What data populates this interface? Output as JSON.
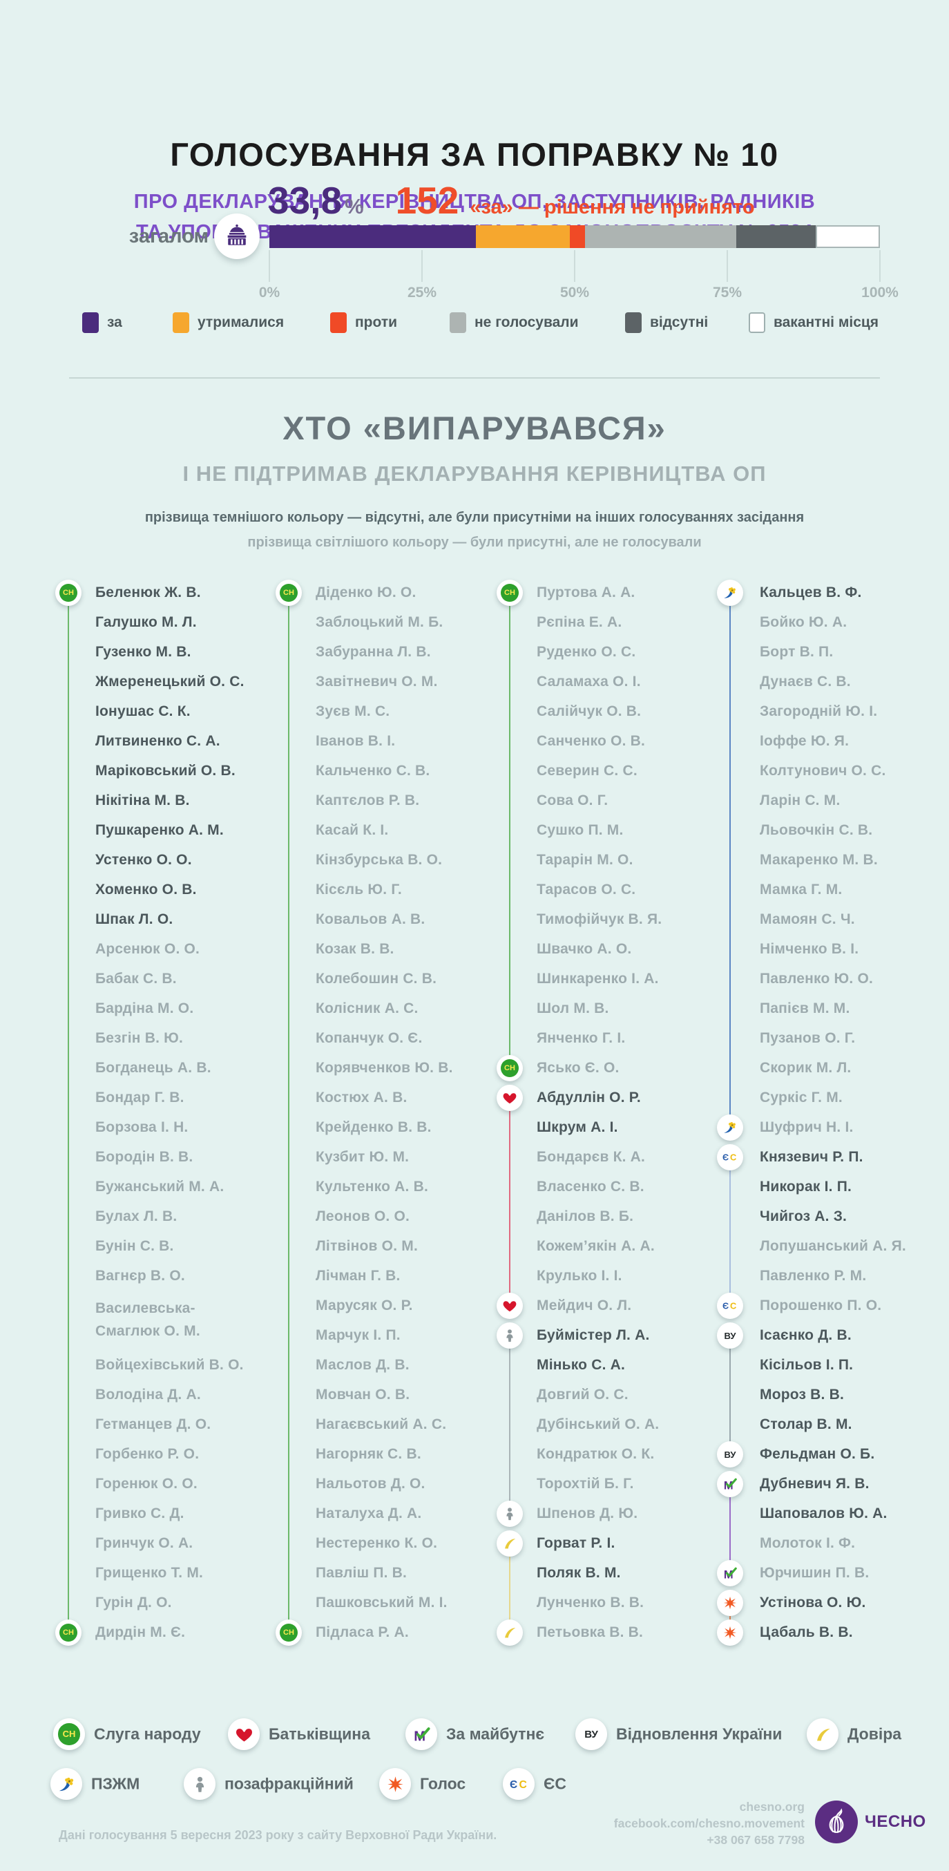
{
  "header": {
    "title": "ГОЛОСУВАННЯ ЗА ПОПРАВКУ № 10",
    "subtitle_line1": "ПРО ДЕКЛАРУВАННЯ КЕРІВНИЦТВА ОП, ЗАСТУПНИКІВ, РАДНИКІВ",
    "subtitle_line2": "ТА УПОВНОВАЖЕНИХ ПРЕЗИДЕНТА ДО ЗАКОНОПРОЄКТУ № 9534"
  },
  "chart_data": {
    "type": "bar",
    "title": "Голосування за поправку № 10",
    "row_label": "загалом",
    "stat_percent": "33,8",
    "stat_percent_sign": "%",
    "stat_count": "152",
    "stat_note": "«за» — рішення не прийнято",
    "xlim": [
      0,
      100
    ],
    "segments": [
      {
        "label": "за",
        "percent": 33.8,
        "color": "#4b2c7d"
      },
      {
        "label": "утрималися",
        "percent": 15.4,
        "color": "#f6a72e"
      },
      {
        "label": "проти",
        "percent": 2.5,
        "color": "#f04a26"
      },
      {
        "label": "не голосували",
        "percent": 24.8,
        "color": "#adb4b2"
      },
      {
        "label": "відсутні",
        "percent": 13.0,
        "color": "#5c6366"
      },
      {
        "label": "вакантні місця",
        "percent": 10.5,
        "color": "#ffffff"
      }
    ],
    "ticks": [
      {
        "pct": 0,
        "label": "0%"
      },
      {
        "pct": 25,
        "label": "25%"
      },
      {
        "pct": 50,
        "label": "50%"
      },
      {
        "pct": 75,
        "label": "75%"
      },
      {
        "pct": 100,
        "label": "100%"
      }
    ],
    "legend_position": "bottom"
  },
  "section": {
    "title": "ХТО «ВИПАРУВАВСЯ»",
    "subtitle": "І НЕ ПІДТРИМАВ ДЕКЛАРУВАННЯ КЕРІВНИЦТВА ОП",
    "note_dark": "прізвища темнішого кольору — відсутні, але були присутніми на інших голосуваннях засідання",
    "note_light": "прізвища світлішого кольору — були присутні, але не голосували"
  },
  "lists": {
    "columns": [
      {
        "groups": [
          {
            "party": "sn",
            "start": 0,
            "end": 35,
            "line": "#6cb96a"
          }
        ],
        "members": [
          {
            "n": "Беленюк Ж. В.",
            "t": "d"
          },
          {
            "n": "Галушко М. Л.",
            "t": "d"
          },
          {
            "n": "Гузенко М. В.",
            "t": "d"
          },
          {
            "n": "Жмеренецький О. С.",
            "t": "d"
          },
          {
            "n": "Іонушас С. К.",
            "t": "d"
          },
          {
            "n": "Литвиненко С. А.",
            "t": "d"
          },
          {
            "n": "Маріковський О. В.",
            "t": "d"
          },
          {
            "n": "Нікітіна М. В.",
            "t": "d"
          },
          {
            "n": "Пушкаренко А. М.",
            "t": "d"
          },
          {
            "n": "Устенко О. О.",
            "t": "d"
          },
          {
            "n": "Хоменко О. В.",
            "t": "d"
          },
          {
            "n": "Шпак Л. О.",
            "t": "d"
          },
          {
            "n": "Арсенюк О. О.",
            "t": "l"
          },
          {
            "n": "Бабак С. В.",
            "t": "l"
          },
          {
            "n": "Бардіна М. О.",
            "t": "l"
          },
          {
            "n": "Безгін В. Ю.",
            "t": "l"
          },
          {
            "n": "Богданець А. В.",
            "t": "l"
          },
          {
            "n": "Бондар Г. В.",
            "t": "l"
          },
          {
            "n": "Борзова І. Н.",
            "t": "l"
          },
          {
            "n": "Бородін В. В.",
            "t": "l"
          },
          {
            "n": "Бужанський М. А.",
            "t": "l"
          },
          {
            "n": "Булах Л. В.",
            "t": "l"
          },
          {
            "n": "Бунін С. В.",
            "t": "l"
          },
          {
            "n": "Вагнєр В. О.",
            "t": "l"
          },
          {
            "n": "Василевська-Смаглюк О. М.",
            "t": "l",
            "lines": [
              "Василевська-",
              "Смаглюк О. М."
            ]
          },
          {
            "n": "Войцехівський В. О.",
            "t": "l"
          },
          {
            "n": "Володіна Д. А.",
            "t": "l"
          },
          {
            "n": "Гетманцев Д. О.",
            "t": "l"
          },
          {
            "n": "Горбенко Р. О.",
            "t": "l"
          },
          {
            "n": "Горенюк О. О.",
            "t": "l"
          },
          {
            "n": "Гривко С. Д.",
            "t": "l"
          },
          {
            "n": "Гринчук О. А.",
            "t": "l"
          },
          {
            "n": "Грищенко Т. М.",
            "t": "l"
          },
          {
            "n": "Гурін Д. О.",
            "t": "l"
          },
          {
            "n": "Дирдін М. Є.",
            "t": "l"
          }
        ]
      },
      {
        "groups": [
          {
            "party": "sn",
            "start": 0,
            "end": 35,
            "line": "#6cb96a"
          }
        ],
        "members": [
          {
            "n": "Діденко Ю. О.",
            "t": "l"
          },
          {
            "n": "Заблоцький М. Б.",
            "t": "l"
          },
          {
            "n": "Забуранна Л. В.",
            "t": "l"
          },
          {
            "n": "Завітневич О. М.",
            "t": "l"
          },
          {
            "n": "Зуєв М. С.",
            "t": "l"
          },
          {
            "n": "Іванов В. І.",
            "t": "l"
          },
          {
            "n": "Кальченко С. В.",
            "t": "l"
          },
          {
            "n": "Каптєлов Р. В.",
            "t": "l"
          },
          {
            "n": "Касай К. І.",
            "t": "l"
          },
          {
            "n": "Кінзбурська В. О.",
            "t": "l"
          },
          {
            "n": "Кісєль Ю. Г.",
            "t": "l"
          },
          {
            "n": "Ковальов А. В.",
            "t": "l"
          },
          {
            "n": "Козак В. В.",
            "t": "l"
          },
          {
            "n": "Колебошин С. В.",
            "t": "l"
          },
          {
            "n": "Колісник А. С.",
            "t": "l"
          },
          {
            "n": "Копанчук О. Є.",
            "t": "l"
          },
          {
            "n": "Корявченков Ю. В.",
            "t": "l"
          },
          {
            "n": "Костюх А. В.",
            "t": "l"
          },
          {
            "n": "Крейденко В. В.",
            "t": "l"
          },
          {
            "n": "Кузбит Ю. М.",
            "t": "l"
          },
          {
            "n": "Культенко А. В.",
            "t": "l"
          },
          {
            "n": "Леонов О. О.",
            "t": "l"
          },
          {
            "n": "Літвінов О. М.",
            "t": "l"
          },
          {
            "n": "Лічман Г. В.",
            "t": "l"
          },
          {
            "n": "Марусяк О. Р.",
            "t": "l"
          },
          {
            "n": "Марчук І. П.",
            "t": "l"
          },
          {
            "n": "Маслов Д. В.",
            "t": "l"
          },
          {
            "n": "Мовчан О. В.",
            "t": "l"
          },
          {
            "n": "Нагаєвський А. С.",
            "t": "l"
          },
          {
            "n": "Нагорняк С. В.",
            "t": "l"
          },
          {
            "n": "Нальотов Д. О.",
            "t": "l"
          },
          {
            "n": "Наталуха Д. А.",
            "t": "l"
          },
          {
            "n": "Нестеренко К. О.",
            "t": "l"
          },
          {
            "n": "Павліш П. В.",
            "t": "l"
          },
          {
            "n": "Пашковський М. І.",
            "t": "l"
          },
          {
            "n": "Підласа Р. А.",
            "t": "l"
          }
        ]
      },
      {
        "groups": [
          {
            "party": "sn",
            "start": 0,
            "end": 16,
            "line": "#6cb96a"
          },
          {
            "party": "batkivshchyna",
            "start": 17,
            "end": 24,
            "line": "#e06a80"
          },
          {
            "party": "nonfaction",
            "start": 25,
            "end": 31,
            "line": "#aab5b7"
          },
          {
            "party": "dovira",
            "start": 32,
            "end": 35,
            "line": "#e6d88e"
          }
        ],
        "members": [
          {
            "n": "Пуртова А. А.",
            "t": "l"
          },
          {
            "n": "Рєпіна Е. А.",
            "t": "l"
          },
          {
            "n": "Руденко О. С.",
            "t": "l"
          },
          {
            "n": "Саламаха О. І.",
            "t": "l"
          },
          {
            "n": "Салійчук О. В.",
            "t": "l"
          },
          {
            "n": "Санченко О. В.",
            "t": "l"
          },
          {
            "n": "Северин С. С.",
            "t": "l"
          },
          {
            "n": "Сова О. Г.",
            "t": "l"
          },
          {
            "n": "Сушко П. М.",
            "t": "l"
          },
          {
            "n": "Тарарін М. О.",
            "t": "l"
          },
          {
            "n": "Тарасов О. С.",
            "t": "l"
          },
          {
            "n": "Тимофійчук В. Я.",
            "t": "l"
          },
          {
            "n": "Швачко А. О.",
            "t": "l"
          },
          {
            "n": "Шинкаренко І. А.",
            "t": "l"
          },
          {
            "n": "Шол М. В.",
            "t": "l"
          },
          {
            "n": "Янченко Г. І.",
            "t": "l"
          },
          {
            "n": "Ясько Є. О.",
            "t": "l"
          },
          {
            "n": "Абдуллін О. Р.",
            "t": "d"
          },
          {
            "n": "Шкрум А. І.",
            "t": "d"
          },
          {
            "n": "Бондарєв К. А.",
            "t": "l"
          },
          {
            "n": "Власенко С. В.",
            "t": "l"
          },
          {
            "n": "Данілов В. Б.",
            "t": "l"
          },
          {
            "n": "Кожем’якін А. А.",
            "t": "l"
          },
          {
            "n": "Крулько І. І.",
            "t": "l"
          },
          {
            "n": "Мейдич О. Л.",
            "t": "l"
          },
          {
            "n": "Буймістер Л. А.",
            "t": "d"
          },
          {
            "n": "Мінько С. А.",
            "t": "d"
          },
          {
            "n": "Довгий О. С.",
            "t": "l"
          },
          {
            "n": "Дубінський О. А.",
            "t": "l"
          },
          {
            "n": "Кондратюк О. К.",
            "t": "l"
          },
          {
            "n": "Торохтій Б. Г.",
            "t": "l"
          },
          {
            "n": "Шпенов Д. Ю.",
            "t": "l"
          },
          {
            "n": "Горват Р. І.",
            "t": "d"
          },
          {
            "n": "Поляк В. М.",
            "t": "d"
          },
          {
            "n": "Лунченко В. В.",
            "t": "l"
          },
          {
            "n": "Петьовка В. В.",
            "t": "l"
          }
        ]
      },
      {
        "groups": [
          {
            "party": "pzhzm",
            "start": 0,
            "end": 18,
            "line": "#5a86c4"
          },
          {
            "party": "es",
            "start": 19,
            "end": 24,
            "line": "#a9bede"
          },
          {
            "party": "vu",
            "start": 25,
            "end": 29,
            "line": "#9aa8ad"
          },
          {
            "party": "zamaybutne",
            "start": 30,
            "end": 33,
            "line": "#9b6cc8"
          },
          {
            "party": "holos",
            "start": 34,
            "end": 35,
            "line": "#f0854f"
          }
        ],
        "members": [
          {
            "n": "Кальцев В. Ф.",
            "t": "d"
          },
          {
            "n": "Бойко Ю. А.",
            "t": "l"
          },
          {
            "n": "Борт В. П.",
            "t": "l"
          },
          {
            "n": "Дунаєв С. В.",
            "t": "l"
          },
          {
            "n": "Загородній Ю. І.",
            "t": "l"
          },
          {
            "n": "Іоффе Ю. Я.",
            "t": "l"
          },
          {
            "n": "Колтунович О. С.",
            "t": "l"
          },
          {
            "n": "Ларін С. М.",
            "t": "l"
          },
          {
            "n": "Льовочкін С. В.",
            "t": "l"
          },
          {
            "n": "Макаренко М. В.",
            "t": "l"
          },
          {
            "n": "Мамка Г. М.",
            "t": "l"
          },
          {
            "n": "Мамоян С. Ч.",
            "t": "l"
          },
          {
            "n": "Німченко В. І.",
            "t": "l"
          },
          {
            "n": "Павленко Ю. О.",
            "t": "l"
          },
          {
            "n": "Папієв М. М.",
            "t": "l"
          },
          {
            "n": "Пузанов О. Г.",
            "t": "l"
          },
          {
            "n": "Скорик М. Л.",
            "t": "l"
          },
          {
            "n": "Суркіс Г. М.",
            "t": "l"
          },
          {
            "n": "Шуфрич Н. І.",
            "t": "l"
          },
          {
            "n": "Князевич Р. П.",
            "t": "d"
          },
          {
            "n": "Никорак І. П.",
            "t": "d"
          },
          {
            "n": "Чийгоз А. З.",
            "t": "d"
          },
          {
            "n": "Лопушанський А. Я.",
            "t": "l"
          },
          {
            "n": "Павленко Р. М.",
            "t": "l"
          },
          {
            "n": "Порошенко П. О.",
            "t": "l"
          },
          {
            "n": "Ісаєнко Д. В.",
            "t": "d"
          },
          {
            "n": "Кісільов І. П.",
            "t": "d"
          },
          {
            "n": "Мороз В. В.",
            "t": "d"
          },
          {
            "n": "Столар В. М.",
            "t": "d"
          },
          {
            "n": "Фельдман О. Б.",
            "t": "d"
          },
          {
            "n": "Дубневич Я. В.",
            "t": "d"
          },
          {
            "n": "Шаповалов Ю. А.",
            "t": "d"
          },
          {
            "n": "Молоток І. Ф.",
            "t": "l"
          },
          {
            "n": "Юрчишин П. В.",
            "t": "l"
          },
          {
            "n": "Устінова О. Ю.",
            "t": "d"
          },
          {
            "n": "Цабаль В. В.",
            "t": "d"
          }
        ]
      }
    ]
  },
  "parties_legend": {
    "rows": [
      [
        {
          "party": "sn",
          "label": "Слуга народу"
        },
        {
          "party": "batkivshchyna",
          "label": "Батьківщина"
        },
        {
          "party": "zamaybutne",
          "label": "За майбутнє"
        },
        {
          "party": "vu",
          "label": "Відновлення України"
        },
        {
          "party": "dovira",
          "label": "Довіра"
        }
      ],
      [
        {
          "party": "pzhzm",
          "label": "ПЗЖМ"
        },
        {
          "party": "nonfaction",
          "label": "позафракційний"
        },
        {
          "party": "holos",
          "label": "Голос"
        },
        {
          "party": "es",
          "label": "ЄС"
        }
      ]
    ]
  },
  "footer": {
    "source_note": "Дані голосування 5 вересня 2023 року з сайту Верховної Ради України.",
    "website": "chesno.org",
    "facebook": "facebook.com/chesno.movement",
    "phone": "+38 067 658 7798",
    "brand": "ЧЕСНО"
  }
}
